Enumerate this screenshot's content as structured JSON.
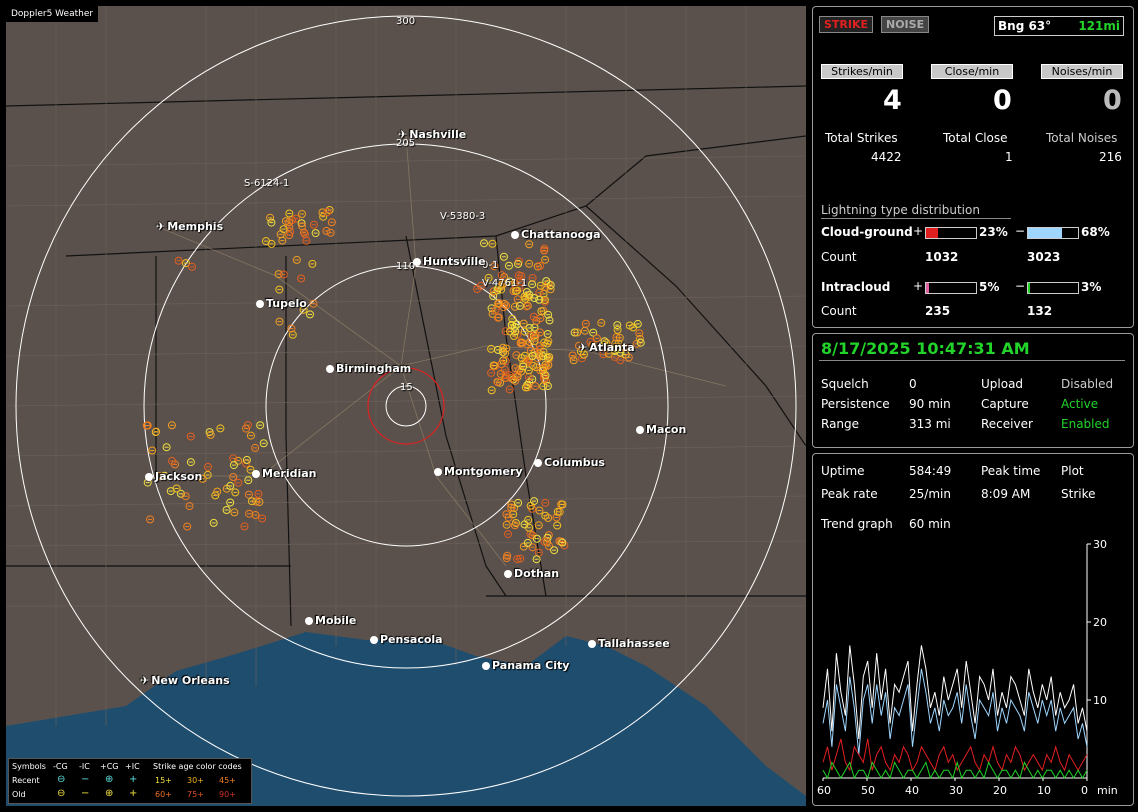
{
  "map": {
    "app_title": "Doppler5 Weather",
    "ring_labels": [
      "300",
      "205",
      "110",
      "15"
    ],
    "sensors": [
      "S-6124-1",
      "V-5380-3",
      "V-4761-1",
      "0-1"
    ],
    "cities": [
      {
        "name": "Nashville",
        "kind": "airport"
      },
      {
        "name": "Memphis",
        "kind": "airport"
      },
      {
        "name": "Chattanooga",
        "kind": "city"
      },
      {
        "name": "Huntsville",
        "kind": "city"
      },
      {
        "name": "Tupelo",
        "kind": "city"
      },
      {
        "name": "Atlanta",
        "kind": "airport"
      },
      {
        "name": "Birmingham",
        "kind": "city"
      },
      {
        "name": "Macon",
        "kind": "city"
      },
      {
        "name": "Jackson",
        "kind": "city"
      },
      {
        "name": "Meridian",
        "kind": "city"
      },
      {
        "name": "Montgomery",
        "kind": "city"
      },
      {
        "name": "Columbus",
        "kind": "city"
      },
      {
        "name": "Dothan",
        "kind": "city"
      },
      {
        "name": "Mobile",
        "kind": "city"
      },
      {
        "name": "Pensacola",
        "kind": "city"
      },
      {
        "name": "Tallahassee",
        "kind": "city"
      },
      {
        "name": "Panama City",
        "kind": "city"
      },
      {
        "name": "New Orleans",
        "kind": "airport"
      }
    ],
    "legend": {
      "symbols": "Symbols",
      "cg_neg": "-CG",
      "ic_neg": "-IC",
      "cg_pos": "+CG",
      "ic_pos": "+IC",
      "age_title": "Strike age color codes",
      "recent": "Recent",
      "old": "Old",
      "ages_recent": [
        "15+",
        "30+",
        "45+"
      ],
      "ages_old": [
        "60+",
        "75+",
        "90+"
      ]
    }
  },
  "header": {
    "strike_btn": "STRIKE",
    "noise_btn": "NOISE",
    "bearing": "Bng 63°",
    "distance": "121mi"
  },
  "rates": {
    "strikes_label": "Strikes/min",
    "close_label": "Close/min",
    "noises_label": "Noises/min",
    "strikes": "4",
    "close": "0",
    "noises": "0",
    "total_strikes_label": "Total Strikes",
    "total_close_label": "Total Close",
    "total_noises_label": "Total Noises",
    "total_strikes": "4422",
    "total_close": "1",
    "total_noises": "216"
  },
  "distribution": {
    "title": "Lightning type distribution",
    "cg_label": "Cloud-ground",
    "ic_label": "Intracloud",
    "count_label": "Count",
    "plus": "+",
    "minus": "−",
    "cg_pos_pct": "23%",
    "cg_neg_pct": "68%",
    "ic_pos_pct": "5%",
    "ic_neg_pct": "3%",
    "cg_pos_count": "1032",
    "cg_neg_count": "3023",
    "ic_pos_count": "235",
    "ic_neg_count": "132",
    "cg_pos_fill": 0.23,
    "cg_neg_fill": 0.68,
    "ic_pos_fill": 0.05,
    "ic_neg_fill": 0.03
  },
  "status": {
    "datetime": "8/17/2025 10:47:31 AM",
    "squelch_label": "Squelch",
    "squelch": "0",
    "persistence_label": "Persistence",
    "persistence": "90 min",
    "range_label": "Range",
    "range": "313 mi",
    "upload_label": "Upload",
    "upload": "Disabled",
    "capture_label": "Capture",
    "capture": "Active",
    "receiver_label": "Receiver",
    "receiver": "Enabled"
  },
  "trend": {
    "uptime_label": "Uptime",
    "uptime": "584:49",
    "peak_time_label": "Peak time",
    "peak_time": "8:09 AM",
    "plot_label": "Plot",
    "plot": "Strike",
    "peak_rate_label": "Peak rate",
    "peak_rate": "25/min",
    "trend_label": "Trend graph",
    "trend_window": "60 min"
  },
  "chart_data": {
    "type": "line",
    "xlabel": "min",
    "x_ticks": [
      "60",
      "50",
      "40",
      "30",
      "20",
      "10",
      "0"
    ],
    "y_ticks": [
      "30",
      "20",
      "10"
    ],
    "xlim": [
      60,
      0
    ],
    "ylim": [
      0,
      30
    ],
    "series": [
      {
        "color": "#ffffff",
        "values": [
          9,
          14,
          6,
          16,
          11,
          8,
          17,
          12,
          5,
          13,
          15,
          9,
          16,
          10,
          14,
          7,
          12,
          11,
          13,
          15,
          6,
          12,
          17,
          14,
          9,
          11,
          8,
          13,
          10,
          12,
          14,
          9,
          15,
          11,
          7,
          13,
          12,
          10,
          14,
          8,
          11,
          9,
          13,
          12,
          10,
          8,
          14,
          11,
          9,
          12,
          10,
          13,
          8,
          11,
          9,
          10,
          12,
          7,
          9,
          6
        ]
      },
      {
        "color": "#9fd6ff",
        "values": [
          7,
          10,
          4,
          12,
          9,
          6,
          13,
          9,
          3,
          10,
          12,
          7,
          12,
          8,
          11,
          5,
          9,
          8,
          10,
          12,
          4,
          9,
          14,
          11,
          7,
          9,
          6,
          10,
          8,
          9,
          11,
          7,
          12,
          8,
          5,
          10,
          9,
          8,
          11,
          6,
          9,
          7,
          10,
          9,
          8,
          6,
          11,
          9,
          7,
          10,
          8,
          10,
          6,
          9,
          7,
          8,
          9,
          5,
          7,
          4
        ]
      },
      {
        "color": "#e02020",
        "values": [
          2,
          4,
          1,
          3,
          5,
          2,
          1,
          4,
          3,
          2,
          5,
          1,
          3,
          4,
          2,
          1,
          3,
          2,
          4,
          3,
          1,
          2,
          4,
          3,
          2,
          1,
          3,
          4,
          2,
          3,
          1,
          2,
          3,
          4,
          2,
          1,
          3,
          2,
          4,
          2,
          1,
          3,
          2,
          4,
          3,
          1,
          2,
          3,
          2,
          1,
          3,
          2,
          4,
          2,
          1,
          3,
          2,
          1,
          2,
          3
        ]
      },
      {
        "color": "#22d32a",
        "values": [
          1,
          0,
          2,
          1,
          0,
          1,
          2,
          0,
          1,
          1,
          0,
          2,
          1,
          0,
          1,
          0,
          2,
          1,
          0,
          1,
          1,
          0,
          1,
          2,
          0,
          1,
          0,
          1,
          1,
          0,
          2,
          0,
          1,
          1,
          0,
          1,
          0,
          2,
          1,
          0,
          1,
          1,
          0,
          1,
          0,
          2,
          1,
          0,
          1,
          0,
          1,
          1,
          0,
          1,
          0,
          1,
          0,
          1,
          0,
          1
        ]
      }
    ]
  }
}
